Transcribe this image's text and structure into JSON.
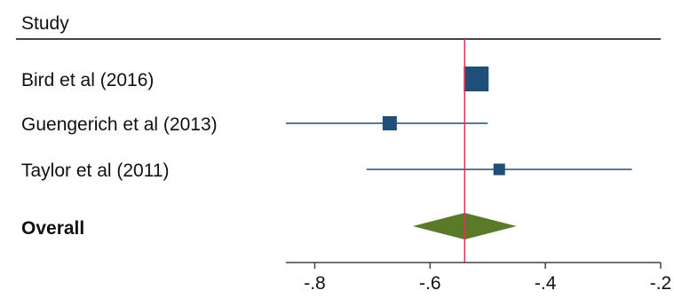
{
  "chart_data": {
    "type": "forest",
    "column_header": "Study",
    "studies": [
      {
        "label": "Bird et al (2016)",
        "estimate": -0.52,
        "ci_low": null,
        "ci_high": null,
        "weight": "large"
      },
      {
        "label": "Guengerich et al (2013)",
        "estimate": -0.67,
        "ci_low": -0.85,
        "ci_high": -0.5,
        "weight": "medium"
      },
      {
        "label": "Taylor et al (2011)",
        "estimate": -0.48,
        "ci_low": -0.71,
        "ci_high": -0.25,
        "weight": "small"
      }
    ],
    "overall": {
      "label": "Overall",
      "estimate": -0.54,
      "ci_low": -0.63,
      "ci_high": -0.45
    },
    "reference_line": -0.54,
    "xlim": [
      -0.85,
      -0.2
    ],
    "xticks": [
      -0.8,
      -0.6,
      -0.4,
      -0.2
    ],
    "xtick_labels": [
      "-.8",
      "-.6",
      "-.4",
      "-.2"
    ],
    "colors": {
      "marker": "#1f4e79",
      "ci_line": "#1f4e79",
      "diamond": "#5a7a2a",
      "reference": "#e0305a",
      "axis": "#444444"
    }
  }
}
